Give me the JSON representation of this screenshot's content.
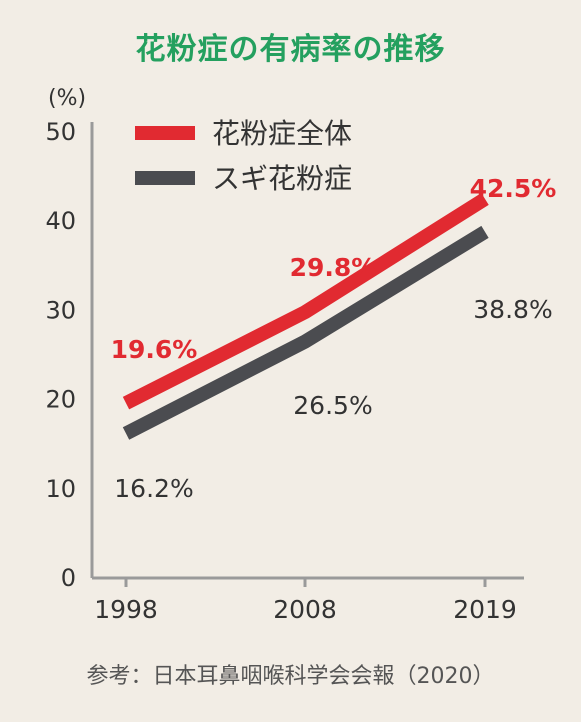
{
  "title": "花粉症の有病率の推移",
  "source": "参考：日本耳鼻咽喉科学会会報（2020）",
  "colors": {
    "series_total": "#e12a31",
    "series_sugi": "#4b4c50",
    "title": "#24a05f",
    "background": "#f2ede5"
  },
  "chart_data": {
    "type": "line",
    "title": "花粉症の有病率の推移",
    "ylabel": "(%)",
    "xlabel": "",
    "ylim": [
      0,
      50
    ],
    "yticks": [
      0,
      10,
      20,
      30,
      40,
      50
    ],
    "categories": [
      "1998",
      "2008",
      "2019"
    ],
    "legend_position": "top-left",
    "grid": false,
    "series": [
      {
        "name": "花粉症全体",
        "color": "#e12a31",
        "values": [
          19.6,
          29.8,
          42.5
        ],
        "labels": [
          "19.6%",
          "29.8%",
          "42.5%"
        ]
      },
      {
        "name": "スギ花粉症",
        "color": "#4b4c50",
        "values": [
          16.2,
          26.5,
          38.8
        ],
        "labels": [
          "16.2%",
          "26.5%",
          "38.8%"
        ]
      }
    ]
  }
}
